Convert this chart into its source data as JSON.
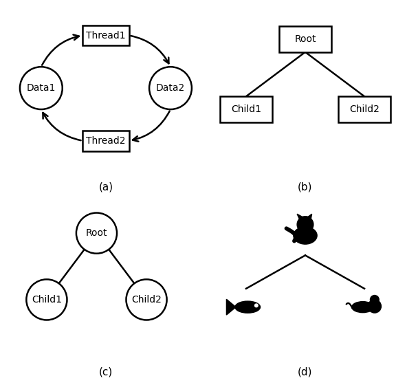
{
  "bg_color": "#ffffff",
  "label_a": "(a)",
  "label_b": "(b)",
  "label_c": "(c)",
  "label_d": "(d)",
  "font_size_label": 11,
  "font_size_node": 10,
  "thread1_label": "Thread1",
  "thread2_label": "Thread2",
  "data1_label": "Data1",
  "data2_label": "Data2",
  "root_label": "Root",
  "child1_label": "Child1",
  "child2_label": "Child2",
  "line_color": "#000000",
  "line_width": 1.8
}
